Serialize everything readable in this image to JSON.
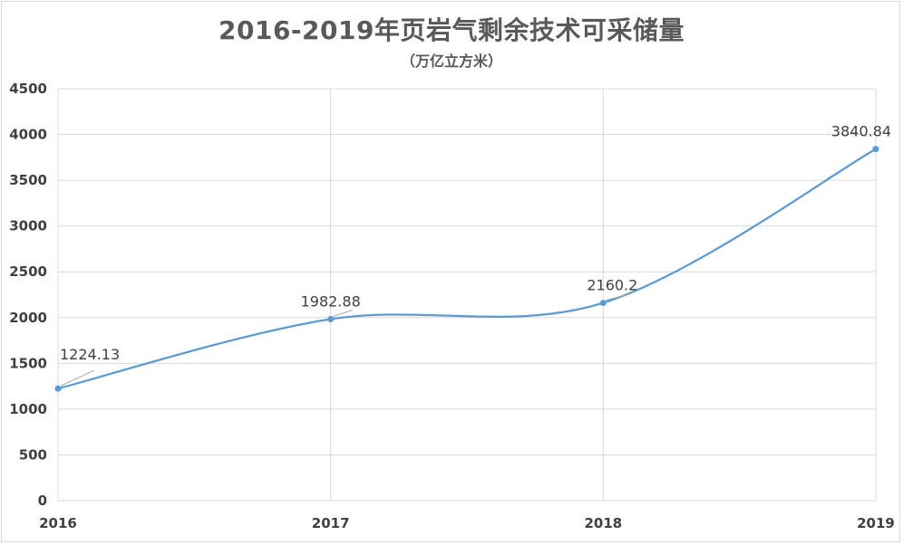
{
  "chart_data": {
    "type": "line",
    "title": "2016-2019年页岩气剩余技术可采储量",
    "subtitle": "（万亿立方米）",
    "xlabel": "",
    "ylabel": "",
    "categories": [
      "2016",
      "2017",
      "2018",
      "2019"
    ],
    "series": [
      {
        "values": [
          1224.13,
          1982.88,
          2160.2,
          3840.84
        ],
        "data_labels": [
          "1224.13",
          "1982.88",
          "2160.2",
          "3840.84"
        ]
      }
    ],
    "ylim": [
      0,
      4500
    ],
    "yticks": [
      0,
      500,
      1000,
      1500,
      2000,
      2500,
      3000,
      3500,
      4000,
      4500
    ],
    "smooth": true,
    "grid": true,
    "legend": "none",
    "colors": {
      "line": "#5b9bd5",
      "grid": "#d9d9d9",
      "text": "#595959"
    }
  }
}
